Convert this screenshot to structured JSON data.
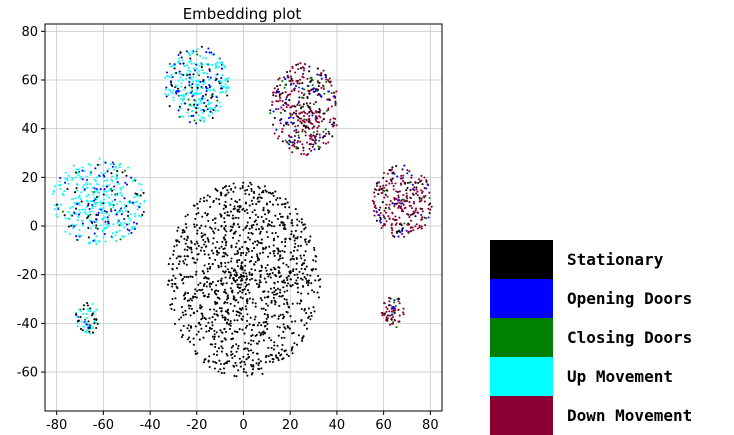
{
  "chart_data": {
    "type": "scatter",
    "title": "Embedding plot",
    "xlabel": "",
    "ylabel": "",
    "xlim": [
      -85,
      85
    ],
    "ylim": [
      -76,
      83
    ],
    "xticks": [
      -80,
      -60,
      -40,
      -20,
      0,
      20,
      40,
      60,
      80
    ],
    "yticks": [
      -60,
      -40,
      -20,
      0,
      20,
      40,
      60,
      80
    ],
    "grid": true,
    "legend_position": "right",
    "series": [
      {
        "name": "Stationary",
        "color": "#000000"
      },
      {
        "name": "Opening Doors",
        "color": "#0000ff"
      },
      {
        "name": "Closing Doors",
        "color": "#008000"
      },
      {
        "name": "Up Movement",
        "color": "#00ffff"
      },
      {
        "name": "Down Movement",
        "color": "#8b0033"
      }
    ],
    "clusters": [
      {
        "cx": 0,
        "cy": -22,
        "rx": 33,
        "ry": 40,
        "n": 1300,
        "weights": [
          1,
          0,
          0,
          0,
          0
        ]
      },
      {
        "cx": -20,
        "cy": 58,
        "rx": 14,
        "ry": 16,
        "n": 330,
        "weights": [
          0.18,
          0.17,
          0.04,
          0.61,
          0
        ]
      },
      {
        "cx": -62,
        "cy": 10,
        "rx": 20,
        "ry": 18,
        "n": 420,
        "weights": [
          0.1,
          0.17,
          0.05,
          0.68,
          0
        ]
      },
      {
        "cx": -67,
        "cy": -38,
        "rx": 5,
        "ry": 7,
        "n": 70,
        "weights": [
          0.3,
          0.12,
          0.04,
          0.54,
          0
        ]
      },
      {
        "cx": 26,
        "cy": 48,
        "rx": 15,
        "ry": 19,
        "n": 420,
        "weights": [
          0.25,
          0.1,
          0.1,
          0,
          0.55
        ]
      },
      {
        "cx": 68,
        "cy": 10,
        "rx": 13,
        "ry": 15,
        "n": 300,
        "weights": [
          0.18,
          0.1,
          0.05,
          0,
          0.67
        ]
      },
      {
        "cx": 64,
        "cy": -35,
        "rx": 5,
        "ry": 7,
        "n": 65,
        "weights": [
          0.2,
          0.1,
          0.05,
          0,
          0.65
        ]
      }
    ]
  }
}
